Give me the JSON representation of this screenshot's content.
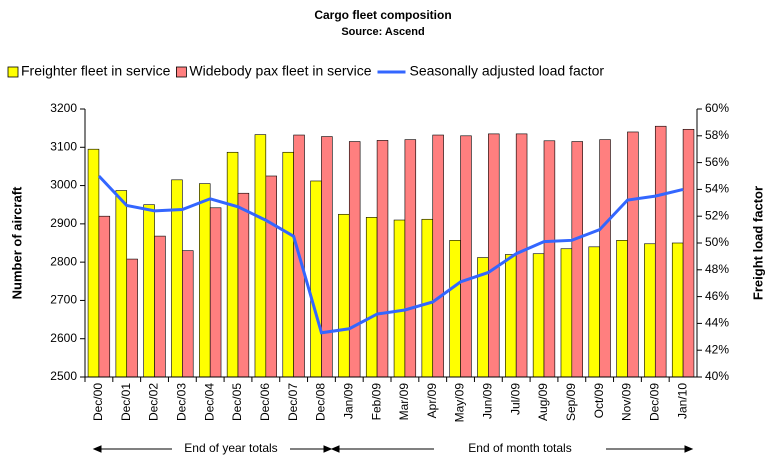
{
  "chart_data": {
    "type": "bar_line",
    "title": "Cargo fleet composition",
    "subtitle": "Source: Ascend",
    "y_label": "Number of aircraft",
    "y2_label": "Freight load factor",
    "annotations": [
      "End of year totals",
      "End of month totals"
    ],
    "categories": [
      "Dec/00",
      "Dec/01",
      "Dec/02",
      "Dec/03",
      "Dec/04",
      "Dec/05",
      "Dec/06",
      "Dec/07",
      "Dec/08",
      "Jan/09",
      "Feb/09",
      "Mar/09",
      "Apr/09",
      "May/09",
      "Jun/09",
      "Jul/09",
      "Aug/09",
      "Sep/09",
      "Oct/09",
      "Nov/09",
      "Dec/09",
      "Jan/10"
    ],
    "series": [
      {
        "name": "Freighter fleet in service",
        "color": "#ffff00",
        "type": "bar",
        "values": [
          3095,
          2987,
          2950,
          3015,
          3005,
          3087,
          3133,
          3087,
          3012,
          2925,
          2917,
          2910,
          2912,
          2857,
          2812,
          2820,
          2822,
          2835,
          2840,
          2857,
          2848,
          2850
        ]
      },
      {
        "name": "Widebody pax fleet in service",
        "color": "#ff7f7f",
        "type": "bar",
        "values": [
          2920,
          2808,
          2868,
          2830,
          2942,
          2980,
          3025,
          3132,
          3128,
          3115,
          3118,
          3120,
          3132,
          3130,
          3135,
          3135,
          3117,
          3115,
          3120,
          3140,
          3155,
          3147
        ]
      },
      {
        "name": "Seasonally adjusted load factor",
        "color": "#3366ff",
        "type": "line",
        "axis": "y2",
        "values": [
          55,
          52.8,
          52.4,
          52.5,
          53.3,
          52.7,
          51.7,
          50.5,
          43.3,
          43.6,
          44.7,
          45,
          45.6,
          47.1,
          47.8,
          49.2,
          50.1,
          50.2,
          51,
          53.2,
          53.5,
          54
        ]
      }
    ],
    "ylim": [
      2500,
      3200
    ],
    "yticks": [
      2500,
      2600,
      2700,
      2800,
      2900,
      3000,
      3100,
      3200
    ],
    "y2lim": [
      40,
      60
    ],
    "y2ticks": [
      {
        "value": 40,
        "label": "40%"
      },
      {
        "value": 42,
        "label": "42%"
      },
      {
        "value": 44,
        "label": "44%"
      },
      {
        "value": 46,
        "label": "46%"
      },
      {
        "value": 48,
        "label": "48%"
      },
      {
        "value": 50,
        "label": "50%"
      },
      {
        "value": 52,
        "label": "52%"
      },
      {
        "value": 54,
        "label": "54%"
      },
      {
        "value": 56,
        "label": "56%"
      },
      {
        "value": 58,
        "label": "58%"
      },
      {
        "value": 60,
        "label": "60%"
      }
    ],
    "legend": "top",
    "grid": false
  }
}
